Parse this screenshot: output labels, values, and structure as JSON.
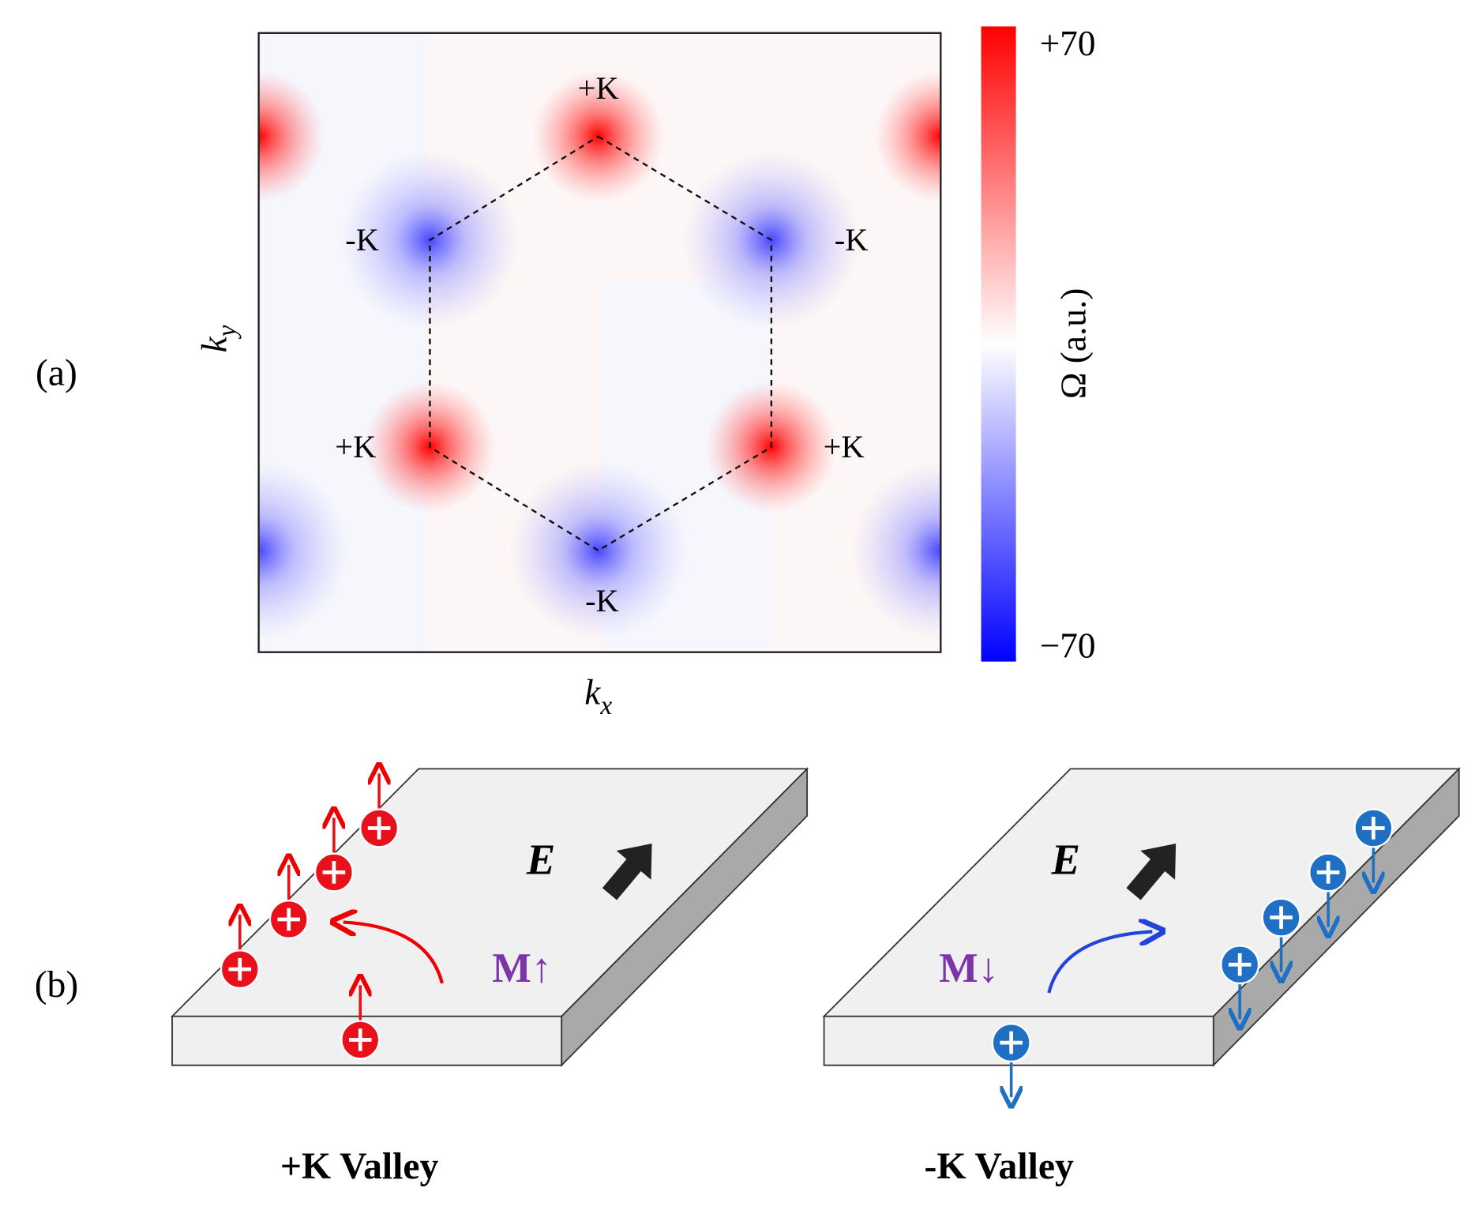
{
  "panel_a": {
    "label": "(a)",
    "points": [
      {
        "label": "+K"
      },
      {
        "label": "-K"
      },
      {
        "label": "-K"
      },
      {
        "label": "+K"
      },
      {
        "label": "+K"
      },
      {
        "label": "-K"
      }
    ],
    "x_label": "k",
    "x_sub": "x",
    "y_label": "k",
    "y_sub": "y",
    "colorbar": {
      "max": "+70",
      "min": "−70",
      "label": "Ω (a.u.)"
    }
  },
  "panel_b": {
    "label": "(b)",
    "left": {
      "field": "E",
      "magnet": "M↑",
      "caption": "+K Valley"
    },
    "right": {
      "field": "E",
      "magnet": "M↓",
      "caption": "-K Valley"
    }
  }
}
